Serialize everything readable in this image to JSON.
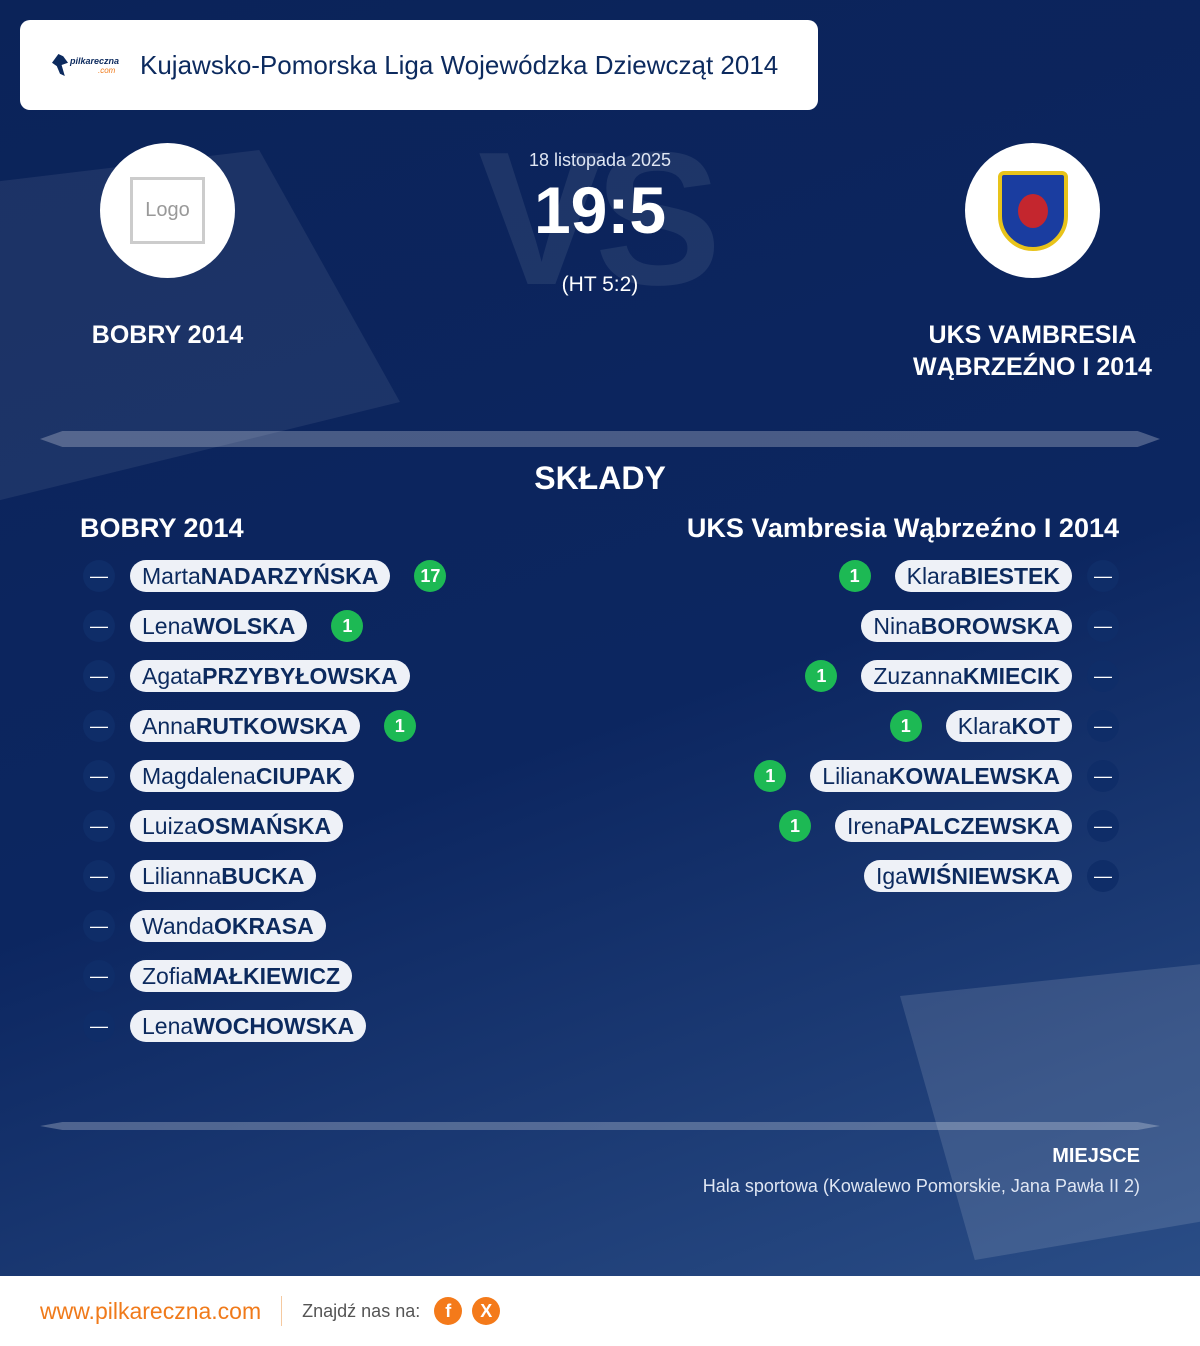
{
  "header": {
    "title": "Kujawsko-Pomorska Liga Wojewódzka Dziewcząt 2014",
    "logo_text": "pilkareczna.com"
  },
  "match": {
    "date": "18 listopada 2025",
    "score": "19:5",
    "half_time": "(HT 5:2)",
    "vs": "VS"
  },
  "home": {
    "name": "BOBRY 2014",
    "logo_placeholder": "Logo"
  },
  "away": {
    "name_line1": "UKS VAMBRESIA",
    "name_line2": "WĄBRZEŹNO I 2014"
  },
  "lineups": {
    "title": "SKŁADY",
    "home_title": "BOBRY 2014",
    "away_title": "UKS Vambresia Wąbrzeźno I 2014",
    "dash": "—",
    "home_players": [
      {
        "first": "Marta",
        "last": "NADARZYŃSKA",
        "goals": "17"
      },
      {
        "first": "Lena",
        "last": "WOLSKA",
        "goals": "1"
      },
      {
        "first": "Agata",
        "last": "PRZYBYŁOWSKA",
        "goals": null
      },
      {
        "first": "Anna",
        "last": "RUTKOWSKA",
        "goals": "1"
      },
      {
        "first": "Magdalena",
        "last": "CIUPAK",
        "goals": null
      },
      {
        "first": "Luiza",
        "last": "OSMAŃSKA",
        "goals": null
      },
      {
        "first": "Lilianna",
        "last": "BUCKA",
        "goals": null
      },
      {
        "first": "Wanda",
        "last": "OKRASA",
        "goals": null
      },
      {
        "first": "Zofia",
        "last": "MAŁKIEWICZ",
        "goals": null
      },
      {
        "first": "Lena",
        "last": "WOCHOWSKA",
        "goals": null
      }
    ],
    "away_players": [
      {
        "first": "Klara",
        "last": "BIESTEK",
        "goals": "1"
      },
      {
        "first": "Nina",
        "last": "BOROWSKA",
        "goals": null
      },
      {
        "first": "Zuzanna",
        "last": "KMIECIK",
        "goals": "1"
      },
      {
        "first": "Klara",
        "last": "KOT",
        "goals": "1"
      },
      {
        "first": "Liliana",
        "last": "KOWALEWSKA",
        "goals": "1"
      },
      {
        "first": "Irena",
        "last": "PALCZEWSKA",
        "goals": "1"
      },
      {
        "first": "Iga",
        "last": "WIŚNIEWSKA",
        "goals": null
      }
    ]
  },
  "venue": {
    "label": "MIEJSCE",
    "value": "Hala sportowa (Kowalewo Pomorskie, Jana Pawła II 2)"
  },
  "footer": {
    "site": "www.pilkareczna.com",
    "find_us": "Znajdź nas na:",
    "facebook": "f",
    "x": "X"
  },
  "colors": {
    "accent": "#f07a1a",
    "goal": "#1db954",
    "navy": "#0c2a5e"
  }
}
